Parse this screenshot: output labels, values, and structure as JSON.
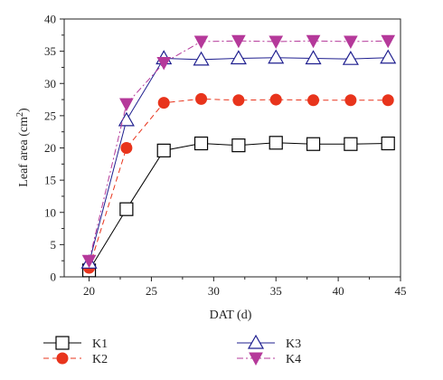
{
  "chart_data": {
    "type": "line",
    "xlabel": "DAT (d)",
    "ylabel": "Leaf area (cm",
    "ylabel_sup": "2",
    "ylabel_suffix": ")",
    "xlim": [
      18,
      45
    ],
    "ylim": [
      0,
      40
    ],
    "xticks": [
      20,
      25,
      30,
      35,
      40,
      45
    ],
    "yticks": [
      0,
      5,
      10,
      15,
      20,
      25,
      30,
      35,
      40
    ],
    "x": [
      20,
      23,
      26,
      29,
      32,
      35,
      38,
      41,
      44
    ],
    "series": [
      {
        "name": "K1",
        "values": [
          1.0,
          10.5,
          19.6,
          20.7,
          20.4,
          20.8,
          20.6,
          20.6,
          20.7
        ],
        "color": "#000000",
        "marker": "square",
        "line": "solid"
      },
      {
        "name": "K2",
        "values": [
          1.4,
          20.0,
          27.0,
          27.6,
          27.4,
          27.5,
          27.4,
          27.4,
          27.4
        ],
        "color": "#e8341c",
        "marker": "circle",
        "line": "dashed"
      },
      {
        "name": "K3",
        "values": [
          2.2,
          24.3,
          33.9,
          33.7,
          33.9,
          34.0,
          33.9,
          33.8,
          34.0
        ],
        "color": "#1f1f8f",
        "marker": "triangle-up",
        "line": "solid"
      },
      {
        "name": "K4",
        "values": [
          2.5,
          26.8,
          33.2,
          36.5,
          36.6,
          36.5,
          36.6,
          36.5,
          36.6
        ],
        "color": "#b5399a",
        "marker": "triangle-down",
        "line": "dash-dot"
      }
    ],
    "legend": "bottom",
    "grid": false
  }
}
